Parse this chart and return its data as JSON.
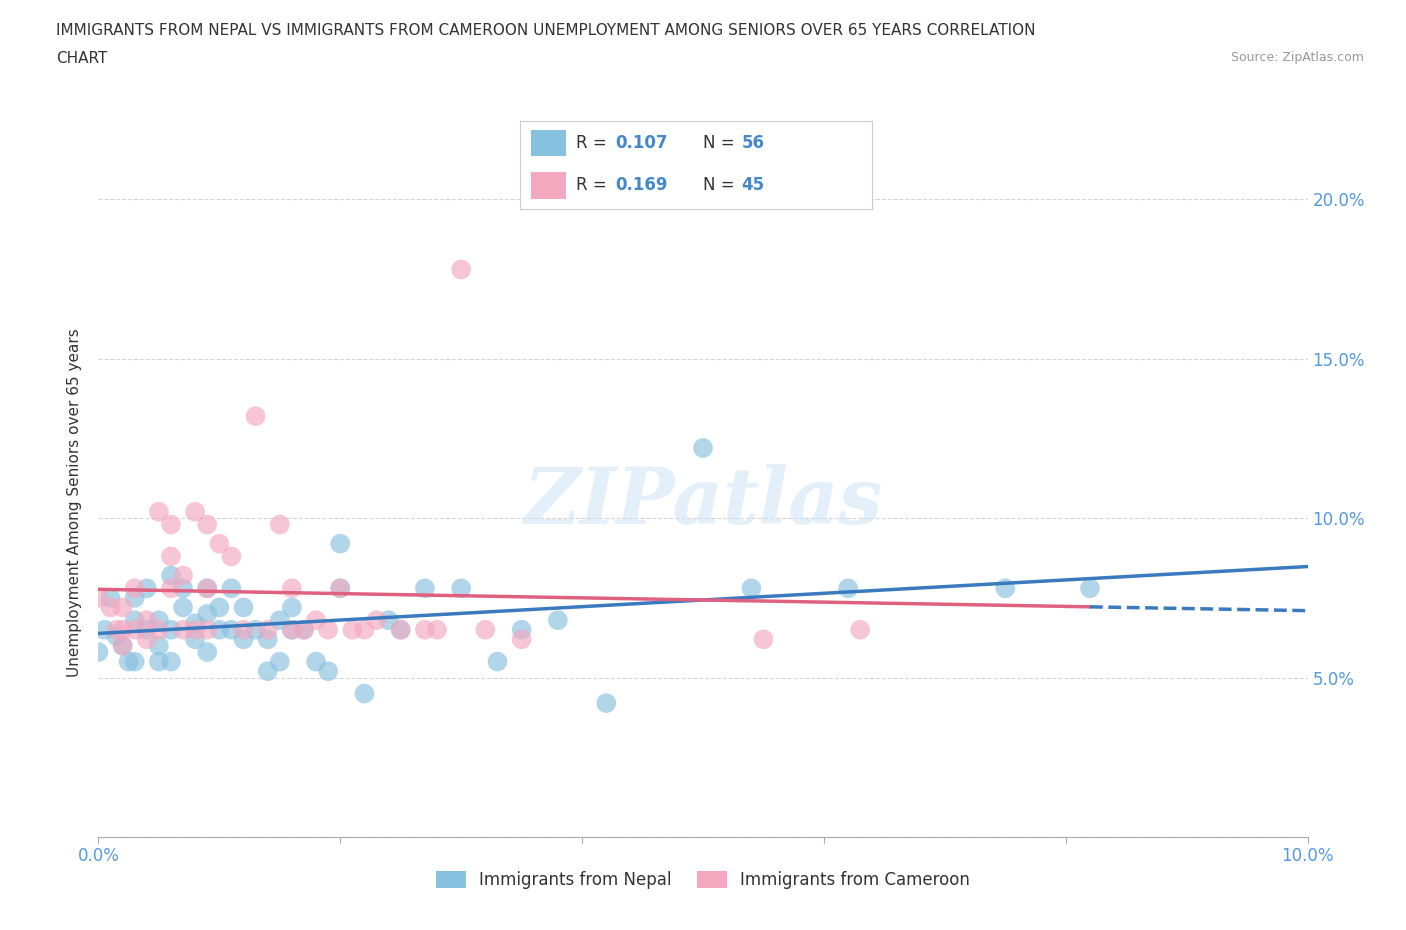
{
  "title_line1": "IMMIGRANTS FROM NEPAL VS IMMIGRANTS FROM CAMEROON UNEMPLOYMENT AMONG SENIORS OVER 65 YEARS CORRELATION",
  "title_line2": "CHART",
  "source": "Source: ZipAtlas.com",
  "ylabel": "Unemployment Among Seniors over 65 years",
  "xlim": [
    0.0,
    0.1
  ],
  "ylim": [
    0.0,
    0.21
  ],
  "nepal_color": "#88c0e0",
  "cameroon_color": "#f4a8c0",
  "nepal_R": 0.107,
  "nepal_N": 56,
  "cameroon_R": 0.169,
  "cameroon_N": 45,
  "nepal_line_color": "#3a7bbf",
  "cameroon_line_color": "#e06080",
  "watermark": "ZIPatlas",
  "nepal_x": [
    0.0005,
    0.001,
    0.0015,
    0.002,
    0.0025,
    0.003,
    0.003,
    0.003,
    0.004,
    0.004,
    0.005,
    0.005,
    0.005,
    0.006,
    0.006,
    0.006,
    0.007,
    0.007,
    0.008,
    0.008,
    0.009,
    0.009,
    0.009,
    0.01,
    0.01,
    0.011,
    0.011,
    0.012,
    0.012,
    0.013,
    0.014,
    0.014,
    0.015,
    0.015,
    0.016,
    0.016,
    0.017,
    0.018,
    0.019,
    0.02,
    0.02,
    0.022,
    0.024,
    0.025,
    0.027,
    0.03,
    0.033,
    0.035,
    0.038,
    0.042,
    0.05,
    0.054,
    0.062,
    0.075,
    0.082,
    0.0
  ],
  "nepal_y": [
    0.065,
    0.075,
    0.063,
    0.06,
    0.055,
    0.068,
    0.075,
    0.055,
    0.078,
    0.065,
    0.06,
    0.068,
    0.055,
    0.082,
    0.065,
    0.055,
    0.072,
    0.078,
    0.062,
    0.067,
    0.078,
    0.07,
    0.058,
    0.072,
    0.065,
    0.078,
    0.065,
    0.072,
    0.062,
    0.065,
    0.062,
    0.052,
    0.068,
    0.055,
    0.072,
    0.065,
    0.065,
    0.055,
    0.052,
    0.092,
    0.078,
    0.045,
    0.068,
    0.065,
    0.078,
    0.078,
    0.055,
    0.065,
    0.068,
    0.042,
    0.122,
    0.078,
    0.078,
    0.078,
    0.078,
    0.058
  ],
  "cameroon_x": [
    0.0,
    0.001,
    0.0015,
    0.002,
    0.002,
    0.002,
    0.003,
    0.003,
    0.004,
    0.004,
    0.005,
    0.005,
    0.006,
    0.006,
    0.006,
    0.007,
    0.007,
    0.008,
    0.008,
    0.009,
    0.009,
    0.009,
    0.01,
    0.011,
    0.012,
    0.013,
    0.014,
    0.015,
    0.016,
    0.016,
    0.017,
    0.018,
    0.019,
    0.02,
    0.021,
    0.022,
    0.023,
    0.025,
    0.027,
    0.028,
    0.03,
    0.032,
    0.035,
    0.055,
    0.063
  ],
  "cameroon_y": [
    0.075,
    0.072,
    0.065,
    0.072,
    0.065,
    0.06,
    0.078,
    0.065,
    0.068,
    0.062,
    0.102,
    0.065,
    0.088,
    0.098,
    0.078,
    0.082,
    0.065,
    0.102,
    0.065,
    0.065,
    0.098,
    0.078,
    0.092,
    0.088,
    0.065,
    0.132,
    0.065,
    0.098,
    0.078,
    0.065,
    0.065,
    0.068,
    0.065,
    0.078,
    0.065,
    0.065,
    0.068,
    0.065,
    0.065,
    0.065,
    0.178,
    0.065,
    0.062,
    0.062,
    0.065
  ]
}
